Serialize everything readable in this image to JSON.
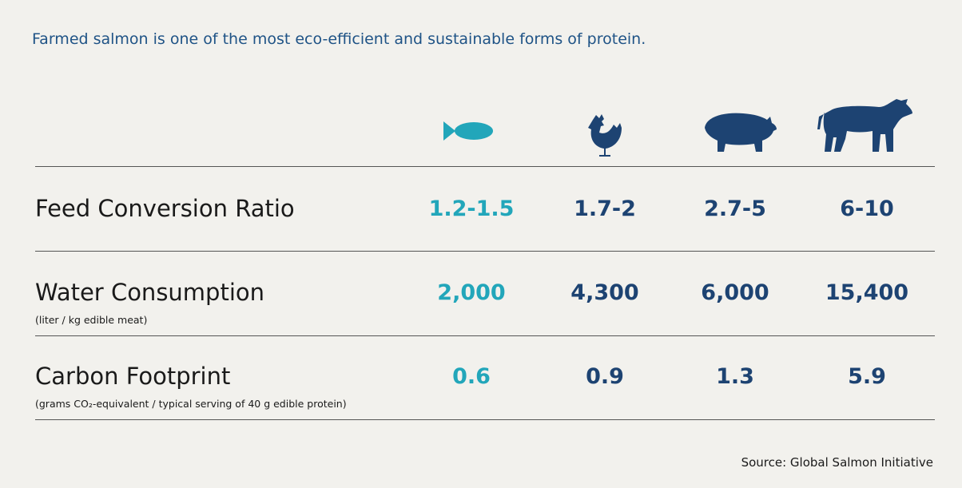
{
  "header": {
    "title": "Farmed salmon is one of the most eco-efficient and sustainable forms of protein."
  },
  "table": {
    "rows": [
      {
        "label": "Feed Conversion Ratio",
        "values": [
          "1.2-1.5",
          "1.7-2",
          "2.7-5",
          "6-10"
        ]
      },
      {
        "label": "Water Consumption",
        "note": "(liter / kg edible meat)",
        "values": [
          "2,000",
          "4,300",
          "6,000",
          "15,400"
        ]
      },
      {
        "label": "Carbon Footprint",
        "note": "(grams CO₂-equivalent / typical serving of 40 g edible protein)",
        "values": [
          "0.6",
          "0.9",
          "1.3",
          "5.9"
        ]
      }
    ]
  },
  "footer": {
    "source": "Source: Global Salmon Initiative"
  }
}
